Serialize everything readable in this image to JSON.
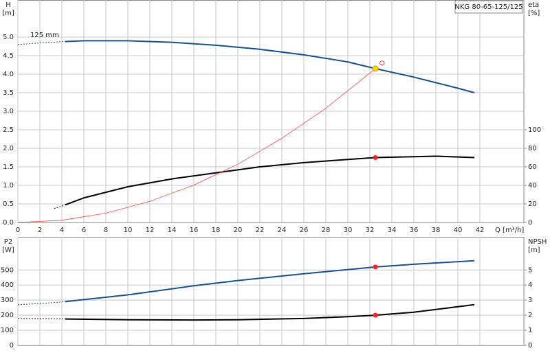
{
  "chart_data": [
    {
      "type": "line",
      "model": "NKG 80-65-125/125",
      "annotation": "125 mm",
      "ylabel": "H",
      "yunit": "[m]",
      "y2label": "eta",
      "y2unit": "[%]",
      "xlabel": "Q [m³/h]",
      "xlim": [
        0,
        46
      ],
      "xticks": [
        0,
        2,
        4,
        6,
        8,
        10,
        12,
        14,
        16,
        18,
        20,
        22,
        24,
        26,
        28,
        30,
        32,
        34,
        36,
        38,
        40,
        42
      ],
      "ylim": [
        0,
        6
      ],
      "yticks": [
        {
          "value": 0,
          "label": "0.0"
        },
        0.5,
        {
          "value": 1,
          "label": "1.0"
        },
        1.5,
        {
          "value": 2,
          "label": "2.0"
        },
        2.5,
        {
          "value": 3,
          "label": "3.0"
        },
        3.5,
        {
          "value": 4,
          "label": "4.0"
        },
        4.5,
        {
          "value": 5,
          "label": "5.0"
        }
      ],
      "y2lim": [
        0,
        240
      ],
      "y2ticks": [
        0,
        20,
        40,
        60,
        80,
        100
      ],
      "grid": true,
      "series": [
        {
          "color": "#1a4f8f",
          "dash": true,
          "x": [
            0,
            2,
            4.3
          ],
          "values": [
            4.8,
            4.84,
            4.88
          ]
        },
        {
          "color": "#1a4f8f",
          "x": [
            4.3,
            6,
            10,
            14,
            18,
            22,
            26,
            30,
            32.5,
            36,
            40,
            41.5
          ],
          "values": [
            4.88,
            4.9,
            4.9,
            4.86,
            4.78,
            4.67,
            4.52,
            4.33,
            4.15,
            3.92,
            3.62,
            3.5
          ]
        },
        {
          "color": "#000000",
          "dash": true,
          "axis": "y2",
          "x": [
            3.3,
            4.3
          ],
          "values": [
            15,
            19
          ]
        },
        {
          "color": "#000000",
          "axis": "y2",
          "x": [
            4.3,
            6,
            10,
            14,
            18,
            22,
            26,
            30,
            32.5,
            36,
            38,
            41.5
          ],
          "values": [
            19,
            26.5,
            38.5,
            47,
            53.5,
            60,
            64.5,
            68,
            70,
            71,
            71.5,
            70
          ]
        },
        {
          "color": "#ff4040",
          "thin": true,
          "x": [
            0,
            4,
            8,
            12,
            16,
            20,
            24,
            28,
            32.5
          ],
          "values": [
            0,
            0.06,
            0.25,
            0.57,
            1.01,
            1.57,
            2.27,
            3.08,
            4.15
          ]
        }
      ],
      "points": [
        {
          "x": 32.5,
          "y": 70,
          "axis": "y2",
          "color": "#ff2020",
          "style": "filled"
        },
        {
          "x": 32.5,
          "y": 4.15,
          "color": "#ffd700",
          "style": "ring"
        },
        {
          "x": 33.1,
          "y": 4.3,
          "color": "#ff4040",
          "style": "hollow"
        }
      ]
    },
    {
      "type": "line",
      "ylabel": "P2",
      "yunit": "[W]",
      "y2label": "NPSH",
      "y2unit": "[m]",
      "xlim": [
        0,
        46
      ],
      "xticks": [
        0,
        2,
        4,
        6,
        8,
        10,
        12,
        14,
        16,
        18,
        20,
        22,
        24,
        26,
        28,
        30,
        32,
        34,
        36,
        38,
        40,
        42
      ],
      "xtick_labels": false,
      "ylim": [
        0,
        720
      ],
      "yticks": [
        0,
        100,
        200,
        300,
        400,
        500
      ],
      "y2lim": [
        0,
        7.2
      ],
      "y2ticks": [
        0,
        1,
        2,
        3,
        4,
        5
      ],
      "grid": true,
      "series": [
        {
          "color": "#1a4f8f",
          "dash": true,
          "x": [
            0,
            2,
            4.3
          ],
          "values": [
            270,
            277,
            290
          ]
        },
        {
          "color": "#1a4f8f",
          "x": [
            4.3,
            10,
            16,
            20,
            26,
            32.5,
            36,
            41.5
          ],
          "values": [
            290,
            335,
            395,
            430,
            475,
            520,
            538,
            562
          ]
        },
        {
          "color": "#000000",
          "dash": true,
          "axis": "y2",
          "x": [
            0,
            4.3
          ],
          "values": [
            1.78,
            1.75
          ]
        },
        {
          "color": "#000000",
          "axis": "y2",
          "x": [
            4.3,
            10,
            16,
            20,
            26,
            30,
            32.5,
            36,
            41.5
          ],
          "values": [
            1.75,
            1.7,
            1.68,
            1.7,
            1.78,
            1.9,
            2.0,
            2.2,
            2.7
          ]
        }
      ],
      "points": [
        {
          "x": 32.5,
          "y": 520,
          "color": "#ff2020",
          "style": "filled"
        },
        {
          "x": 32.5,
          "y": 2.0,
          "axis": "y2",
          "color": "#ff2020",
          "style": "filled"
        }
      ]
    }
  ]
}
